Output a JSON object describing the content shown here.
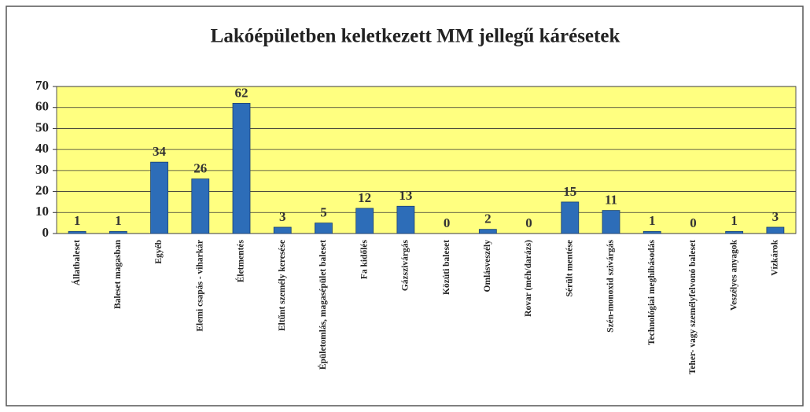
{
  "chart_data": {
    "type": "bar",
    "title": "Lakóépületben keletkezett MM jellegű kárésetek",
    "categories": [
      "Állatbaleset",
      "Baleset magasban",
      "Egyéb",
      "Elemi csapás - viharkár",
      "Életmentés",
      "Eltűnt személy keresése",
      "Épületomlás, magasépület baleset",
      "Fa kidőlés",
      "Gázszivárgás",
      "Közúti baleset",
      "Omlásveszély",
      "Rovar (méh/darázs)",
      "Sérült mentése",
      "Szén-monoxid szivárgás",
      "Technológiai meghibásodás",
      "Teher- vagy személyfelvonó baleset",
      "Veszélyes anyagok",
      "Vízkárok"
    ],
    "values": [
      1,
      1,
      34,
      26,
      62,
      3,
      5,
      12,
      13,
      0,
      2,
      0,
      15,
      11,
      1,
      0,
      1,
      3
    ],
    "color": "#2d6db8",
    "ylim": [
      0,
      70
    ],
    "yticks": [
      0,
      10,
      20,
      30,
      40,
      50,
      60,
      70
    ],
    "grid": true
  }
}
